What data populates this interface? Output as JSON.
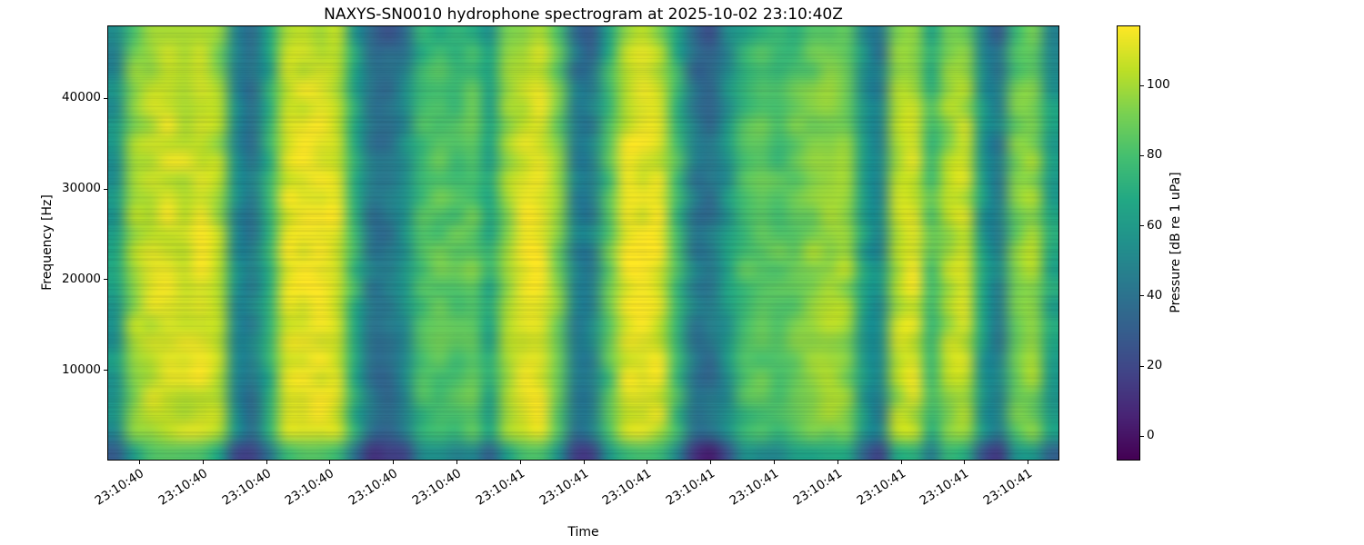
{
  "chart_data": {
    "type": "heatmap",
    "title": "NAXYS-SN0010 hydrophone spectrogram at 2025-10-02 23:10:40Z",
    "xlabel": "Time",
    "ylabel": "Frequency [Hz]",
    "x_tick_labels": [
      "23:10:40",
      "23:10:40",
      "23:10:40",
      "23:10:40",
      "23:10:40",
      "23:10:40",
      "23:10:41",
      "23:10:41",
      "23:10:41",
      "23:10:41",
      "23:10:41",
      "23:10:41",
      "23:10:41",
      "23:10:41",
      "23:10:41"
    ],
    "x_tick_rotation_deg": 33,
    "y_tick_values": [
      10000,
      20000,
      30000,
      40000
    ],
    "y_tick_labels": [
      "10000",
      "20000",
      "30000",
      "40000"
    ],
    "y_range": [
      0,
      48000
    ],
    "grid": false,
    "colorbar": {
      "label": "Pressure [dB re 1 uPa]",
      "tick_values": [
        0,
        20,
        40,
        60,
        80,
        100
      ],
      "range": [
        -7,
        117
      ]
    },
    "colormap": {
      "name": "viridis",
      "stops": [
        [
          0.0,
          "#440154"
        ],
        [
          0.1,
          "#482475"
        ],
        [
          0.2,
          "#414487"
        ],
        [
          0.3,
          "#355f8d"
        ],
        [
          0.4,
          "#2a788e"
        ],
        [
          0.5,
          "#21918c"
        ],
        [
          0.6,
          "#22a884"
        ],
        [
          0.7,
          "#44bf70"
        ],
        [
          0.8,
          "#7ad151"
        ],
        [
          0.9,
          "#bddf26"
        ],
        [
          1.0,
          "#fde725"
        ]
      ]
    },
    "time_profile_db": [
      58,
      96,
      104,
      108,
      106,
      110,
      100,
      52,
      42,
      70,
      106,
      112,
      113,
      108,
      72,
      40,
      38,
      52,
      78,
      82,
      80,
      84,
      66,
      96,
      108,
      110,
      90,
      46,
      44,
      80,
      108,
      112,
      108,
      78,
      42,
      38,
      55,
      78,
      84,
      80,
      86,
      92,
      96,
      95,
      60,
      48,
      100,
      106,
      78,
      98,
      104,
      58,
      44,
      88,
      94,
      62
    ],
    "freq_profile_db": [
      -9,
      -5,
      -3,
      -1,
      0,
      1,
      1,
      2,
      2,
      3,
      3,
      4,
      5,
      5,
      4,
      4,
      3,
      3,
      2,
      2,
      1,
      0,
      -2,
      -28
    ]
  }
}
